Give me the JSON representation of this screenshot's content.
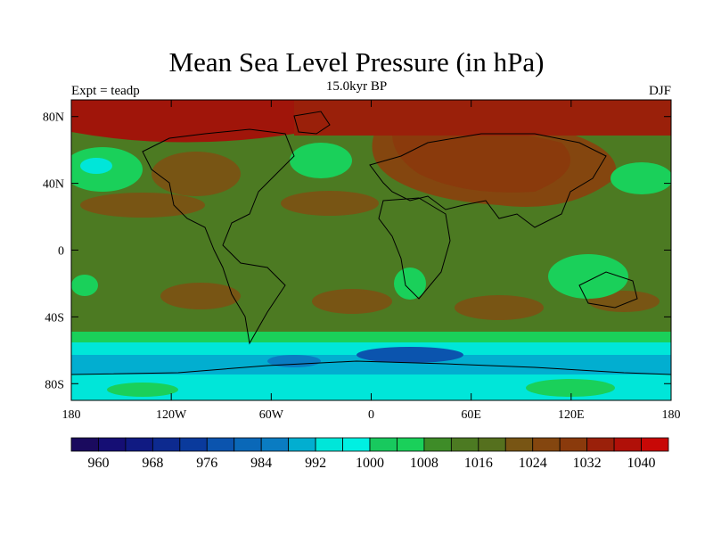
{
  "title": "Mean Sea Level Pressure (in hPa)",
  "subtitle": "15.0kyr BP",
  "left_label": "Expt = teadp",
  "right_label": "DJF",
  "map": {
    "lon_range": [
      -180,
      180
    ],
    "lat_range": [
      -90,
      90
    ],
    "lat_ticks": [
      {
        "value": 80,
        "label": "80N"
      },
      {
        "value": 40,
        "label": "40N"
      },
      {
        "value": 0,
        "label": "0"
      },
      {
        "value": -40,
        "label": "40S"
      },
      {
        "value": -80,
        "label": "80S"
      }
    ],
    "lon_ticks": [
      {
        "value": -180,
        "label": "180"
      },
      {
        "value": -120,
        "label": "120W"
      },
      {
        "value": -60,
        "label": "60W"
      },
      {
        "value": 0,
        "label": "0"
      },
      {
        "value": 60,
        "label": "60E"
      },
      {
        "value": 120,
        "label": "120E"
      },
      {
        "value": 180,
        "label": "180"
      }
    ]
  },
  "colorbar": {
    "colors": [
      "#1a0a5e",
      "#150e74",
      "#101a82",
      "#0d2a8f",
      "#0a3a9c",
      "#0b54ae",
      "#0a68b8",
      "#0a7cc2",
      "#02aed0",
      "#00e6d9",
      "#00f0e2",
      "#18c95e",
      "#1ad05a",
      "#3e8c28",
      "#4c7a22",
      "#55701e",
      "#785514",
      "#84460f",
      "#8a3a0c",
      "#9a200a",
      "#b01008",
      "#c80806"
    ],
    "labels": [
      "960",
      "968",
      "976",
      "984",
      "992",
      "1000",
      "1008",
      "1016",
      "1024",
      "1032",
      "1040"
    ]
  }
}
